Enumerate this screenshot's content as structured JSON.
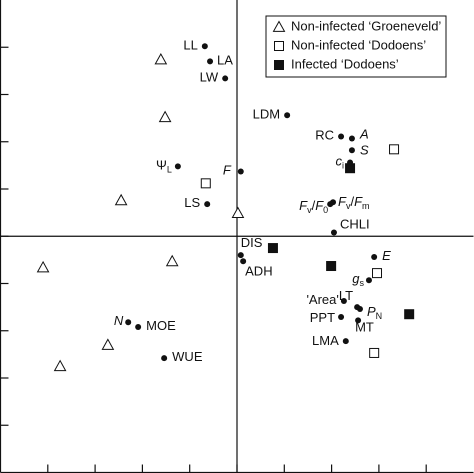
{
  "chart_data": {
    "type": "scatter",
    "xlim": [
      -5,
      5
    ],
    "ylim": [
      -5,
      5
    ],
    "xticks": [
      -4,
      -3,
      -2,
      -1,
      0,
      1,
      2,
      3,
      4
    ],
    "yticks": [
      -4,
      -3,
      -2,
      -1,
      0,
      1,
      2,
      3,
      4
    ],
    "legend": "upper right",
    "series": [
      {
        "name": "Non-infected ‘Groeneveld’",
        "marker": "triangle",
        "filled": false,
        "color": "#111111",
        "x": [
          -1.61,
          -1.52,
          -2.45,
          0.02,
          -4.1,
          -1.37,
          -2.73,
          -3.74
        ],
        "y": [
          3.74,
          2.52,
          0.76,
          0.49,
          -0.66,
          -0.53,
          -2.3,
          -2.75
        ]
      },
      {
        "name": "Non-infected ‘Dodoens’",
        "marker": "square",
        "filled": false,
        "color": "#111111",
        "x": [
          3.32,
          -0.66,
          2.96,
          2.9
        ],
        "y": [
          1.84,
          1.12,
          -0.78,
          -2.47
        ]
      },
      {
        "name": "Infected ‘Dodoens’",
        "marker": "square",
        "filled": true,
        "color": "#111111",
        "x": [
          2.39,
          0.76,
          1.99,
          3.64
        ],
        "y": [
          1.44,
          -0.25,
          -0.63,
          -1.65
        ]
      }
    ],
    "loadings": {
      "marker": "circle",
      "color": "#111111",
      "x": [
        -0.68,
        -0.57,
        -0.25,
        1.06,
        2.2,
        2.43,
        2.43,
        2.39,
        0.08,
        -1.25,
        -0.63,
        1.97,
        2.03,
        2.05,
        0.08,
        0.13,
        2.9,
        2.79,
        2.26,
        2.54,
        2.6,
        2.2,
        2.56,
        2.3,
        -2.3,
        -2.09,
        -1.54
      ],
      "y": [
        4.02,
        3.7,
        3.34,
        2.56,
        2.11,
        2.07,
        1.82,
        1.56,
        1.37,
        1.48,
        0.68,
        0.68,
        0.72,
        0.08,
        -0.4,
        -0.53,
        -0.44,
        -0.93,
        -1.37,
        -1.5,
        -1.54,
        -1.71,
        -1.78,
        -2.22,
        -1.82,
        -1.92,
        -2.58
      ],
      "labels": [
        [
          {
            "text": "LL",
            "style": "normal"
          }
        ],
        [
          {
            "text": "LA",
            "style": "normal"
          }
        ],
        [
          {
            "text": "LW",
            "style": "normal"
          }
        ],
        [
          {
            "text": "LDM",
            "style": "normal"
          }
        ],
        [
          {
            "text": "RC",
            "style": "normal"
          }
        ],
        [
          {
            "text": "A",
            "style": "italic"
          }
        ],
        [
          {
            "text": "S",
            "style": "italic"
          }
        ],
        [
          {
            "text": "c",
            "style": "italic"
          },
          {
            "text": "i",
            "style": "sub"
          }
        ],
        [
          {
            "text": "F",
            "style": "italic"
          }
        ],
        [
          {
            "text": "Ψ",
            "style": "normal"
          },
          {
            "text": "L",
            "style": "sub"
          }
        ],
        [
          {
            "text": "LS",
            "style": "normal"
          }
        ],
        [
          {
            "text": "F",
            "style": "italic"
          },
          {
            "text": "v",
            "style": "sub"
          },
          {
            "text": "/",
            "style": "normal"
          },
          {
            "text": "F",
            "style": "italic"
          },
          {
            "text": "0",
            "style": "sub"
          }
        ],
        [
          {
            "text": "F",
            "style": "italic"
          },
          {
            "text": "v",
            "style": "sub"
          },
          {
            "text": "/",
            "style": "normal"
          },
          {
            "text": "F",
            "style": "italic"
          },
          {
            "text": "m",
            "style": "sub"
          }
        ],
        [
          {
            "text": "CHLI",
            "style": "normal"
          }
        ],
        [
          {
            "text": "DIS",
            "style": "normal"
          }
        ],
        [
          {
            "text": "ADH",
            "style": "normal"
          }
        ],
        [
          {
            "text": "E",
            "style": "italic"
          }
        ],
        [
          {
            "text": "g",
            "style": "italic"
          },
          {
            "text": "s",
            "style": "sub"
          }
        ],
        [
          {
            "text": "'Area'",
            "style": "normal"
          }
        ],
        [
          {
            "text": "LT",
            "style": "normal"
          }
        ],
        [
          {
            "text": "P",
            "style": "italic"
          },
          {
            "text": "N",
            "style": "sub"
          }
        ],
        [
          {
            "text": "PPT",
            "style": "normal"
          }
        ],
        [
          {
            "text": "MT",
            "style": "normal"
          }
        ],
        [
          {
            "text": "LMA",
            "style": "normal"
          }
        ],
        [
          {
            "text": "N",
            "style": "italic"
          }
        ],
        [
          {
            "text": "MOE",
            "style": "normal"
          }
        ],
        [
          {
            "text": "WUE",
            "style": "normal"
          }
        ]
      ]
    }
  }
}
